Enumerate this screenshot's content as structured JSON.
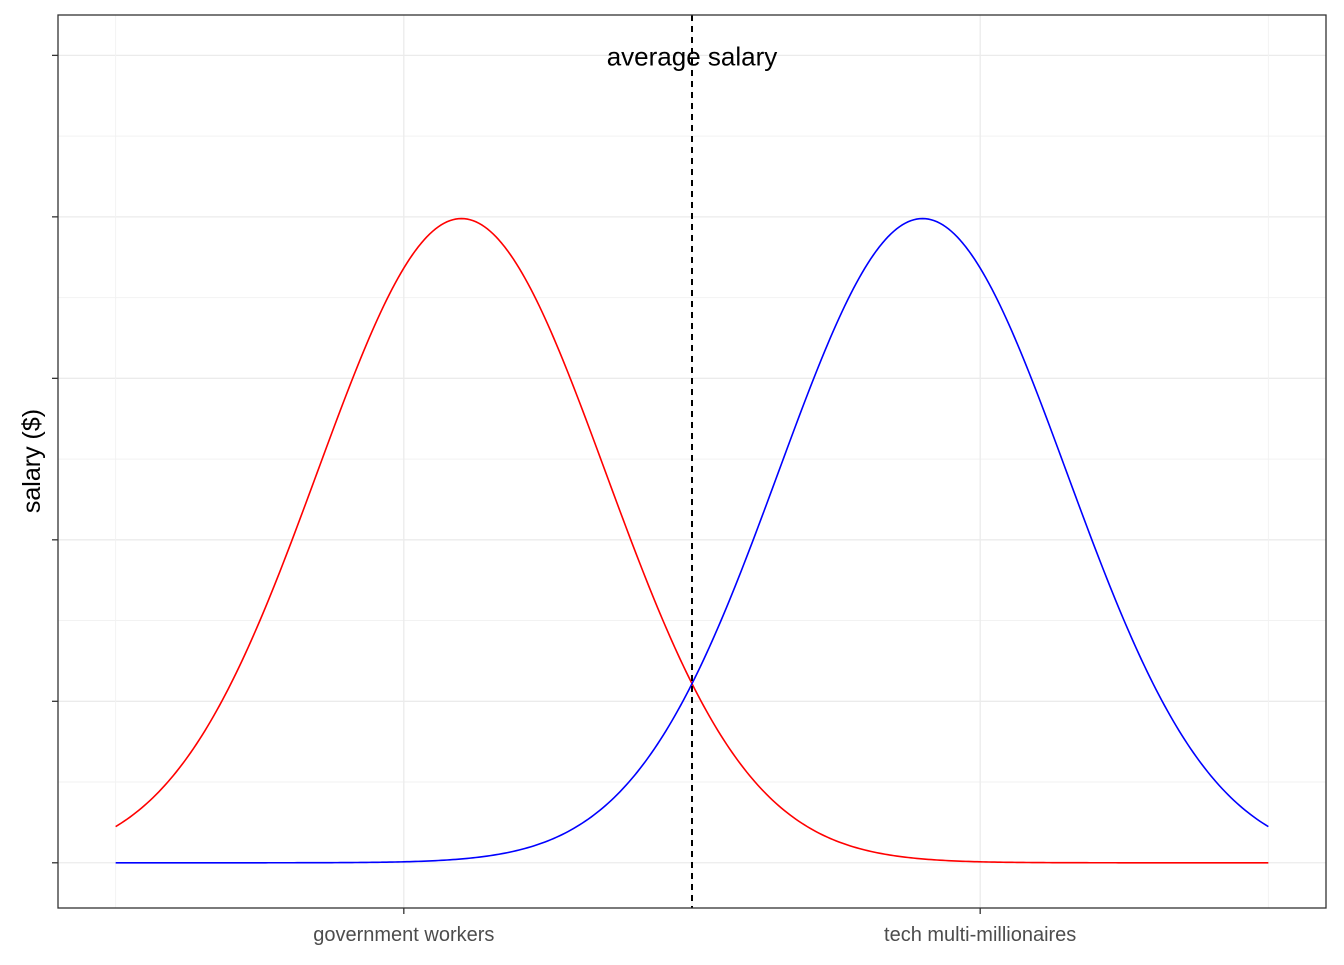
{
  "chart_data": {
    "type": "line",
    "title": "",
    "xlabel": "",
    "ylabel": "salary ($)",
    "x_range": [
      -4,
      4
    ],
    "xlim": [
      -4.4,
      4.4
    ],
    "ylim": [
      -0.028,
      0.525
    ],
    "x_ticks": [
      {
        "x": -2,
        "label": "government workers"
      },
      {
        "x": 2,
        "label": "tech multi-millionaires"
      }
    ],
    "y_ticks": [
      0.0,
      0.1,
      0.2,
      0.3,
      0.4,
      0.5
    ],
    "y_tick_labels_shown": false,
    "grid": true,
    "legend": "none",
    "series": [
      {
        "color": "#ff0000",
        "distribution": "normal",
        "mean": -1.6,
        "sd": 1.0
      },
      {
        "color": "#0000ff",
        "distribution": "normal",
        "mean": 1.6,
        "sd": 1.0
      }
    ],
    "reference_line": {
      "x": 0,
      "style": "dashed",
      "color": "#000000"
    },
    "annotations": [
      {
        "text": "average salary",
        "x": 0,
        "y": 0.5
      }
    ]
  }
}
